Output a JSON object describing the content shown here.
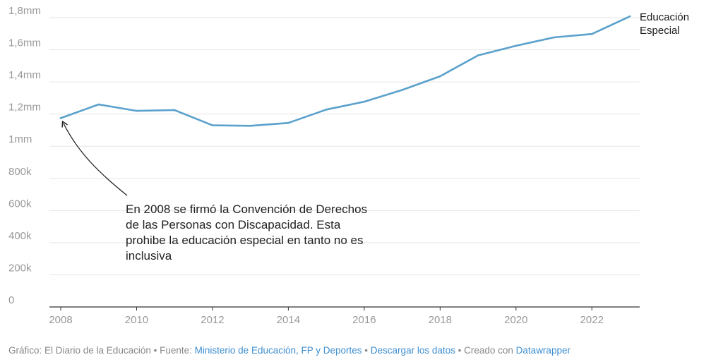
{
  "chart_data": {
    "type": "line",
    "x": [
      2008,
      2009,
      2010,
      2011,
      2012,
      2013,
      2014,
      2015,
      2016,
      2017,
      2018,
      2019,
      2020,
      2021,
      2022,
      2023
    ],
    "series": [
      {
        "name": "Educación Especial",
        "label_line1": "Educación",
        "label_line2": "Especial",
        "color": "#5aa1cc",
        "values": [
          1175000,
          1260000,
          1220000,
          1225000,
          1130000,
          1127000,
          1145000,
          1228000,
          1277000,
          1350000,
          1435000,
          1565000,
          1625000,
          1677000,
          1698000,
          1808000
        ]
      }
    ],
    "xlim": [
      2008,
      2023
    ],
    "ylim": [
      0,
      1800000
    ],
    "x_ticks": [
      2008,
      2010,
      2012,
      2014,
      2016,
      2018,
      2020,
      2022
    ],
    "y_ticks": [
      0,
      200000,
      400000,
      600000,
      800000,
      1000000,
      1200000,
      1400000,
      1600000,
      1800000
    ],
    "y_tick_labels": [
      "0",
      "200k",
      "400k",
      "600k",
      "800k",
      "1mm",
      "1,2mm",
      "1,4mm",
      "1,6mm",
      "1,8mm"
    ],
    "grid": true,
    "annotation": {
      "text": "En 2008 se firmó la Convención de Derechos de las Personas con Discapacidad. Esta prohibe la educación especial en tanto no es inclusiva",
      "x": 2008,
      "y": 1175000
    }
  },
  "footer": {
    "credit": "Gráfico: El Diario de la Educación",
    "source_prefix": "• Fuente:",
    "source_link": "Ministerio de Educación, FP y Deportes",
    "sep1": "•",
    "download": "Descargar los datos",
    "sep2": "• Creado con",
    "tool": "Datawrapper"
  }
}
